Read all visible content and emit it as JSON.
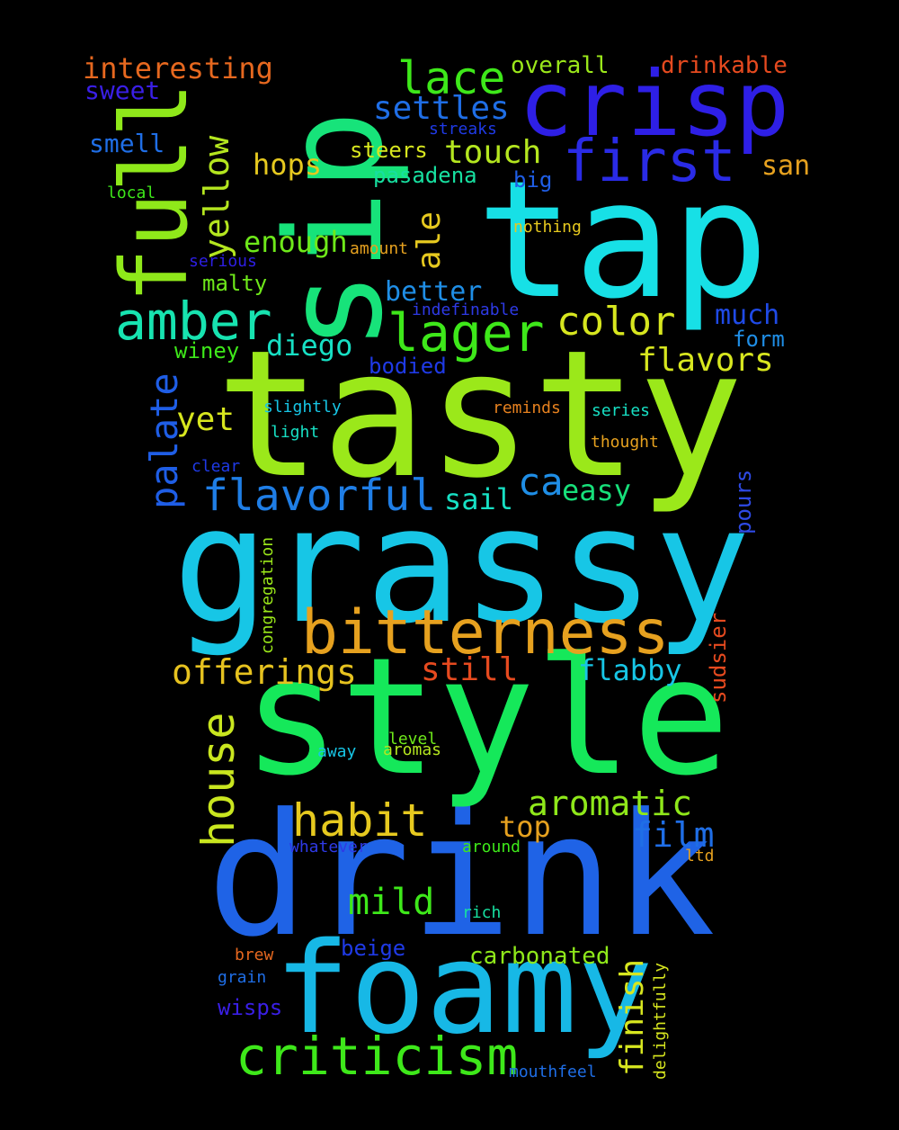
{
  "words": [
    {
      "text": "tasty",
      "color": "#9be81a"
    },
    {
      "text": "drink",
      "color": "#1f63e6"
    },
    {
      "text": "grassy",
      "color": "#17c6e6"
    },
    {
      "text": "style",
      "color": "#15e85a"
    },
    {
      "text": "tap",
      "color": "#17e0e6"
    },
    {
      "text": "sip",
      "color": "#17e37a"
    },
    {
      "text": "crisp",
      "color": "#2e1fe6"
    },
    {
      "text": "foamy",
      "color": "#17b8e6"
    },
    {
      "text": "bitterness",
      "color": "#e6a11f"
    },
    {
      "text": "full",
      "color": "#8fe81a"
    },
    {
      "text": "criticism",
      "color": "#3ee81a"
    },
    {
      "text": "first",
      "color": "#2a2be6"
    },
    {
      "text": "lager",
      "color": "#3ee81a"
    },
    {
      "text": "amber",
      "color": "#17e3b0"
    },
    {
      "text": "habit",
      "color": "#e6c91f"
    },
    {
      "text": "offerings",
      "color": "#e6c21f"
    },
    {
      "text": "flavorful",
      "color": "#1f7ee6"
    },
    {
      "text": "lace",
      "color": "#3ee81a"
    },
    {
      "text": "color",
      "color": "#d7e61f"
    },
    {
      "text": "aromatic",
      "color": "#8fe81a"
    },
    {
      "text": "house",
      "color": "#c9e61f"
    },
    {
      "text": "yellow",
      "color": "#b4e61f"
    },
    {
      "text": "palate",
      "color": "#1f5ee6"
    },
    {
      "text": "settles",
      "color": "#1f6ee6"
    },
    {
      "text": "touch",
      "color": "#b4e61f"
    },
    {
      "text": "interesting",
      "color": "#e6681f"
    },
    {
      "text": "still",
      "color": "#e64a1f"
    },
    {
      "text": "flabby",
      "color": "#17c6e6"
    },
    {
      "text": "film",
      "color": "#1f6ee6"
    },
    {
      "text": "flavors",
      "color": "#d7e61f"
    },
    {
      "text": "finish",
      "color": "#d7e61f"
    },
    {
      "text": "mild",
      "color": "#3ee81a"
    },
    {
      "text": "diego",
      "color": "#17e0c4"
    },
    {
      "text": "hops",
      "color": "#e6c91f"
    },
    {
      "text": "ca",
      "color": "#1f8ee6"
    },
    {
      "text": "smell",
      "color": "#1f6ee6"
    },
    {
      "text": "sweet",
      "color": "#3a1fe6"
    },
    {
      "text": "enough",
      "color": "#6ee81a"
    },
    {
      "text": "ale",
      "color": "#e6c91f"
    },
    {
      "text": "better",
      "color": "#1f8ee6"
    },
    {
      "text": "much",
      "color": "#1f4ae6"
    },
    {
      "text": "yet",
      "color": "#d7e61f"
    },
    {
      "text": "sail",
      "color": "#17e0c4"
    },
    {
      "text": "easy",
      "color": "#17e07a"
    },
    {
      "text": "top",
      "color": "#e6a11f"
    },
    {
      "text": "carbonated",
      "color": "#8fe81a"
    },
    {
      "text": "overall",
      "color": "#9be81a"
    },
    {
      "text": "drinkable",
      "color": "#e64a1f"
    },
    {
      "text": "san",
      "color": "#e6a11f"
    },
    {
      "text": "pasadena",
      "color": "#17e0a0"
    },
    {
      "text": "steers",
      "color": "#d7e61f"
    },
    {
      "text": "malty",
      "color": "#6ee81a"
    },
    {
      "text": "winey",
      "color": "#3ee81a"
    },
    {
      "text": "bodied",
      "color": "#1f3ae6"
    },
    {
      "text": "form",
      "color": "#1f8ee6"
    },
    {
      "text": "big",
      "color": "#1f5ee6"
    },
    {
      "text": "pours",
      "color": "#2e4ae6"
    },
    {
      "text": "sudsier",
      "color": "#e64a1f"
    },
    {
      "text": "wisps",
      "color": "#3a1fe6"
    },
    {
      "text": "beige",
      "color": "#1f3ae6"
    },
    {
      "text": "streaks",
      "color": "#1f3ae6"
    },
    {
      "text": "local",
      "color": "#3ee81a"
    },
    {
      "text": "serious",
      "color": "#2e1fe6"
    },
    {
      "text": "amount",
      "color": "#e6a11f"
    },
    {
      "text": "nothing",
      "color": "#e6c91f"
    },
    {
      "text": "indefinable",
      "color": "#2e3ae6"
    },
    {
      "text": "slightly",
      "color": "#17c6e6"
    },
    {
      "text": "light",
      "color": "#17e0c4"
    },
    {
      "text": "reminds",
      "color": "#e6811f"
    },
    {
      "text": "series",
      "color": "#17e0c4"
    },
    {
      "text": "thought",
      "color": "#e6a11f"
    },
    {
      "text": "clear",
      "color": "#1f3ae6"
    },
    {
      "text": "congregation",
      "color": "#9be81a"
    },
    {
      "text": "level",
      "color": "#6ee81a"
    },
    {
      "text": "away",
      "color": "#17c6e6"
    },
    {
      "text": "aromas",
      "color": "#b4e61f"
    },
    {
      "text": "whatever",
      "color": "#2e3ae6"
    },
    {
      "text": "around",
      "color": "#3ee81a"
    },
    {
      "text": "ltd",
      "color": "#e6a11f"
    },
    {
      "text": "rich",
      "color": "#17e0a0"
    },
    {
      "text": "brew",
      "color": "#e6681f"
    },
    {
      "text": "grain",
      "color": "#1f6ee6"
    },
    {
      "text": "mouthfeel",
      "color": "#1f6ee6"
    },
    {
      "text": "delightfully",
      "color": "#d7e61f"
    }
  ]
}
